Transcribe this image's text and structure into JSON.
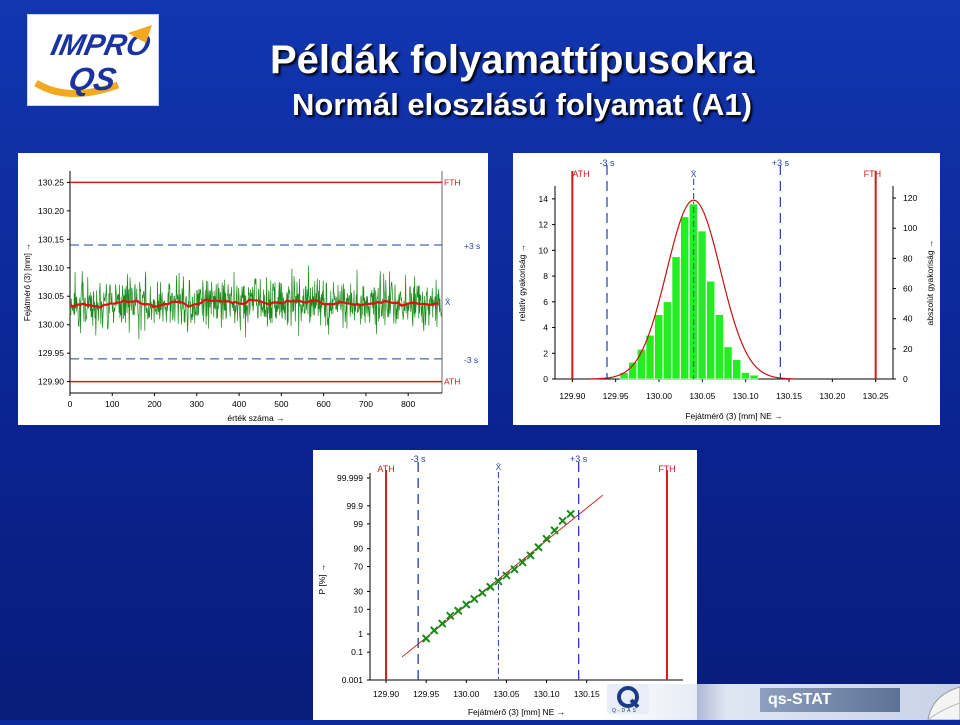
{
  "slide": {
    "title": "Példák folyamattípusokra",
    "subtitle": "Normál eloszlású folyamat (A1)",
    "logo_text_top": "IMPRO",
    "logo_text_bottom": "QS",
    "footer_brand": "Q-DAS",
    "footer_product": "qs-STAT"
  },
  "colors": {
    "background": "#0d2a9a",
    "limit_line": "#d11a1a",
    "sigma_line": "#1f3fa8",
    "data_line": "#1a8a1a",
    "moving_avg": "#e01010",
    "histogram_bar": "#22ee22",
    "fit_curve": "#c81010"
  },
  "chart_data": [
    {
      "type": "line",
      "name": "value-chart",
      "xlabel": "érték száma →",
      "ylabel": "Fejátmérő (3) [mm] →",
      "xlim": [
        0,
        880
      ],
      "ylim": [
        129.88,
        130.27
      ],
      "xticks": [
        "0",
        "100",
        "200",
        "300",
        "400",
        "500",
        "600",
        "700",
        "800"
      ],
      "yticks": [
        "129.90",
        "129.95",
        "130.00",
        "130.05",
        "130.10",
        "130.15",
        "130.20",
        "130.25"
      ],
      "n_points": 880,
      "mean": 130.04,
      "sd": 0.03,
      "fth": 130.25,
      "ath": 129.9,
      "plus3s": 130.14,
      "minus3s": 129.94,
      "labels": {
        "fth": "FTH",
        "ath": "ATH",
        "plus3s": "+3 s",
        "minus3s": "-3 s",
        "xbar": "X̄"
      }
    },
    {
      "type": "bar",
      "name": "histogram",
      "xlabel": "Fejátmérő (3) [mm] NE →",
      "ylabel": "relatív gyakoriság →",
      "y2label": "abszolút gyakoriság →",
      "xlim": [
        129.88,
        130.27
      ],
      "ylim": [
        0,
        15
      ],
      "y2lim": [
        0,
        128
      ],
      "xticks": [
        "129.90",
        "129.95",
        "130.00",
        "130.05",
        "130.10",
        "130.15",
        "130.20",
        "130.25"
      ],
      "yticks": [
        "0",
        "2",
        "4",
        "6",
        "8",
        "10",
        "12",
        "14"
      ],
      "y2ticks": [
        "0",
        "20",
        "40",
        "60",
        "80",
        "100",
        "120"
      ],
      "bin_width": 0.01,
      "bins": [
        129.96,
        129.97,
        129.98,
        129.99,
        130.0,
        130.01,
        130.02,
        130.03,
        130.04,
        130.05,
        130.06,
        130.07,
        130.08,
        130.09,
        130.1,
        130.11
      ],
      "values": [
        0.5,
        1.3,
        2.3,
        3.4,
        5.0,
        6.0,
        9.5,
        12.6,
        13.6,
        11.5,
        7.6,
        5.0,
        2.5,
        1.5,
        0.5,
        0.3
      ],
      "ath": 129.9,
      "fth": 130.25,
      "minus3s": 129.94,
      "plus3s": 130.14,
      "mean": 130.04,
      "labels": {
        "fth": "FTH",
        "ath": "ATH",
        "plus3s": "+3 s",
        "minus3s": "-3 s",
        "xbar": "X̄"
      }
    },
    {
      "type": "scatter",
      "name": "probability-plot",
      "xlabel": "Fejátmérő (3) [mm] NE →",
      "ylabel": "P [%] →",
      "xlim": [
        129.88,
        130.27
      ],
      "xticks": [
        "129.90",
        "129.95",
        "130.00",
        "130.05",
        "130.10",
        "130.15"
      ],
      "yticks": [
        "0.001",
        "0.1",
        "1",
        "10",
        "30",
        "70",
        "90",
        "99",
        "99.9",
        "99.999"
      ],
      "ath": 129.9,
      "fth": 130.25,
      "minus3s": 129.94,
      "plus3s": 130.14,
      "mean": 130.04,
      "points": [
        [
          129.95,
          0.6
        ],
        [
          129.96,
          1.5
        ],
        [
          129.97,
          3
        ],
        [
          129.98,
          6
        ],
        [
          129.99,
          9
        ],
        [
          130.0,
          14
        ],
        [
          130.01,
          20
        ],
        [
          130.02,
          28
        ],
        [
          130.03,
          37
        ],
        [
          130.04,
          46
        ],
        [
          130.05,
          56
        ],
        [
          130.06,
          66
        ],
        [
          130.07,
          76
        ],
        [
          130.08,
          84
        ],
        [
          130.09,
          91
        ],
        [
          130.1,
          95.5
        ],
        [
          130.11,
          98
        ],
        [
          130.12,
          99.3
        ],
        [
          130.13,
          99.7
        ]
      ],
      "labels": {
        "fth": "FTH",
        "ath": "ATH",
        "plus3s": "+3 s",
        "minus3s": "-3 s",
        "xbar": "X̄"
      }
    }
  ]
}
